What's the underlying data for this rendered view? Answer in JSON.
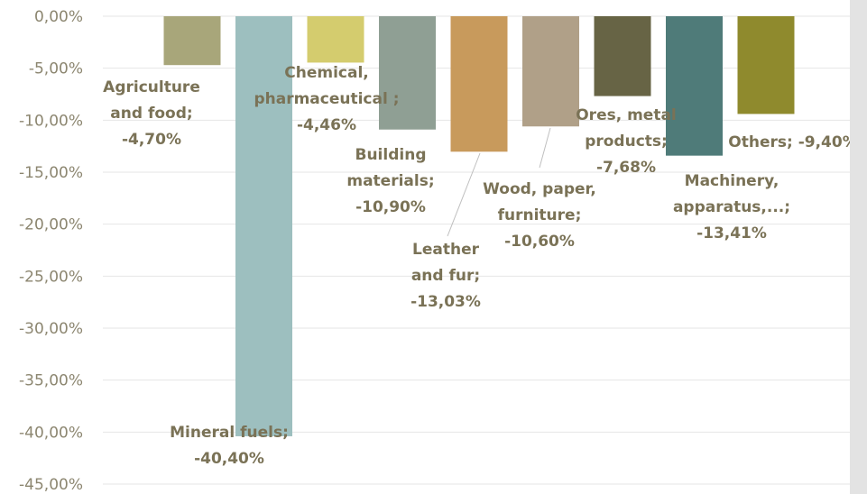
{
  "chart_data": {
    "type": "bar",
    "title": "",
    "xlabel": "",
    "ylabel": "",
    "ylim": [
      -45,
      0
    ],
    "yticks": [
      "0,00%",
      "-5,00%",
      "-10,00%",
      "-15,00%",
      "-20,00%",
      "-25,00%",
      "-30,00%",
      "-35,00%",
      "-40,00%",
      "-45,00%"
    ],
    "grid": true,
    "categories": [
      "Agriculture and food",
      "Mineral fuels",
      "Chemical, pharmaceutical",
      "Building materials",
      "Leather and fur",
      "Wood, paper, furniture",
      "Ores, metal products",
      "Machinery, apparatus,...",
      "Others"
    ],
    "values": [
      -4.7,
      -40.4,
      -4.46,
      -10.9,
      -13.03,
      -10.6,
      -7.68,
      -13.41,
      -9.4
    ],
    "colors": [
      "#a8a67a",
      "#9dbfbf",
      "#d4cc6e",
      "#8f9f94",
      "#c89a5c",
      "#b0a088",
      "#676445",
      "#4f7b79",
      "#8f8a2d"
    ],
    "data_labels": [
      [
        "Agriculture",
        "and food;",
        "-4,70%"
      ],
      [
        "Mineral fuels;",
        "-40,40%"
      ],
      [
        "Chemical,",
        "pharmaceutical ;",
        "-4,46%"
      ],
      [
        "Building",
        "materials;",
        "-10,90%"
      ],
      [
        "Leather",
        "and fur;",
        "-13,03%"
      ],
      [
        "Wood, paper,",
        "furniture;",
        "-10,60%"
      ],
      [
        "Ores, metal",
        "products;",
        "-7,68%"
      ],
      [
        "Machinery,",
        "apparatus,...;",
        "-13,41%"
      ],
      [
        "Others; -9,40%"
      ]
    ]
  }
}
